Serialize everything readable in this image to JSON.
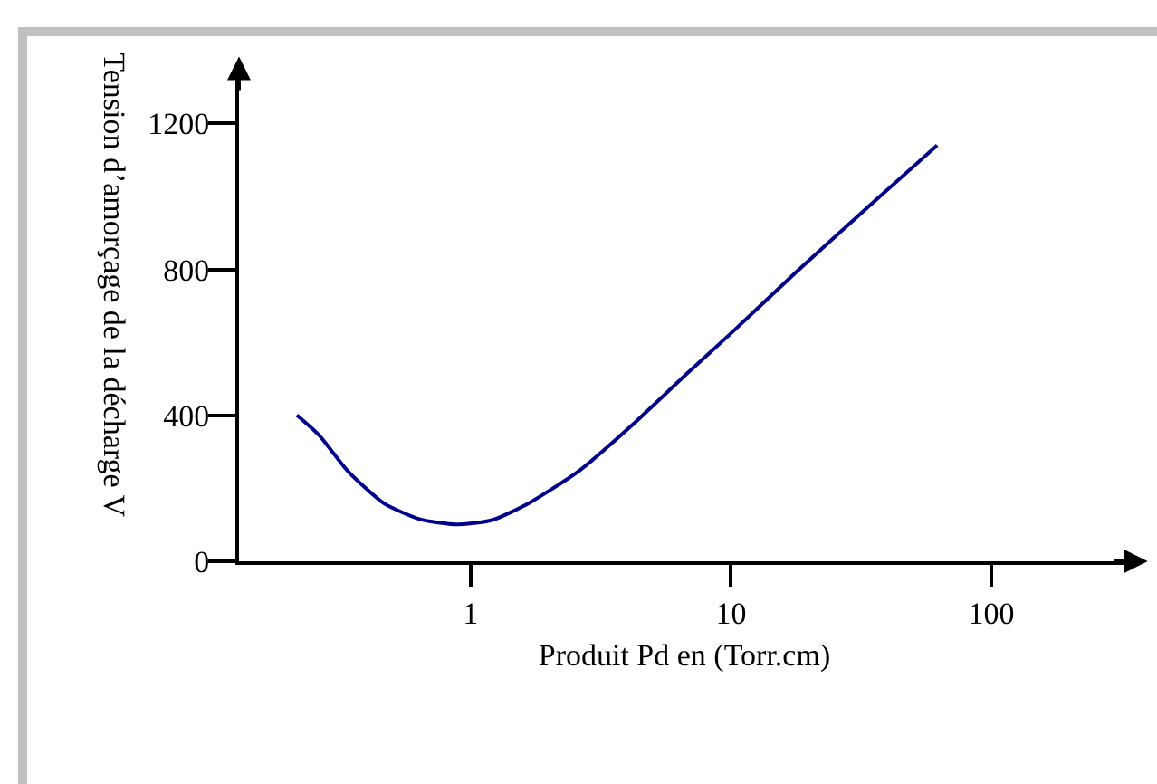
{
  "chart_data": {
    "type": "line",
    "xlabel": "Produit Pd en (Torr.cm)",
    "ylabel": "Tension d’amorçage de la décharge V",
    "log": "x",
    "x": [
      0.215,
      0.261,
      0.337,
      0.464,
      0.64,
      0.88,
      1.21,
      1.67,
      2.61,
      4.08,
      6.81,
      10,
      17.8,
      33.7,
      61.9
    ],
    "series": [
      {
        "color": "#00008b",
        "values": [
          401,
          347,
          248,
          159,
          115,
          101,
          113,
          159,
          248,
          367,
          516,
          625,
          793,
          972,
          1140
        ]
      }
    ],
    "xlim": [
      0.129,
      340
    ],
    "xticks": [
      1,
      10,
      100
    ],
    "ylim": [
      0,
      1330
    ],
    "yticks": [
      0,
      400,
      800,
      1200
    ],
    "grid": false,
    "marker": "none",
    "line_style": "solid"
  }
}
